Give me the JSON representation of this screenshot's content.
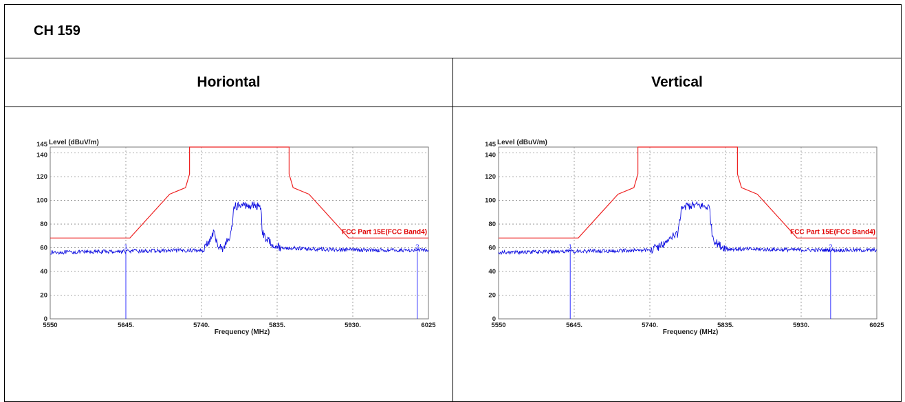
{
  "doc": {
    "title": "CH 159",
    "col_left": "Horiontal",
    "col_right": "Vertical"
  },
  "colors": {
    "trace": "#1010e0",
    "limit": "#ee2222",
    "marker": "#3030ff",
    "grid": "#888888"
  },
  "chart_data": [
    {
      "type": "line",
      "ylabel": "Level (dBuV/m)",
      "xlabel": "Frequency (MHz)",
      "xlim": [
        5550,
        6025
      ],
      "ylim": [
        0,
        145
      ],
      "xticks": [
        5550,
        5645,
        5740,
        5835,
        5930,
        6025
      ],
      "xtick_labels": [
        "5550",
        "5645.",
        "5740.",
        "5835.",
        "5930.",
        "6025"
      ],
      "yticks": [
        0,
        20,
        40,
        60,
        80,
        100,
        120,
        140,
        145
      ],
      "grid": true,
      "limit_line": {
        "name": "FCC Part 15E(FCC Band4)",
        "x": [
          5550,
          5650,
          5700,
          5720,
          5725,
          5725,
          5850,
          5850,
          5855,
          5875,
          5925,
          6025
        ],
        "y": [
          68.2,
          68.2,
          105.2,
          110.8,
          122.2,
          145,
          145,
          122.2,
          110.8,
          105.2,
          68.2,
          68.2
        ]
      },
      "series": [
        {
          "values_x": [
            5550,
            5600,
            5640,
            5700,
            5740,
            5750,
            5755,
            5760,
            5766,
            5775,
            5779,
            5780,
            5800,
            5815,
            5816,
            5820,
            5830,
            5840,
            5900,
            5960,
            6025
          ],
          "values_y": [
            56,
            56.5,
            57,
            57.5,
            58,
            65,
            73,
            63,
            59,
            68,
            78,
            95,
            96,
            95,
            75,
            68,
            63,
            60,
            58.5,
            58,
            58
          ]
        }
      ],
      "markers": [
        {
          "label": "1",
          "x": 5645
        },
        {
          "label": "2",
          "x": 6011
        }
      ]
    },
    {
      "type": "line",
      "ylabel": "Level (dBuV/m)",
      "xlabel": "Frequency (MHz)",
      "xlim": [
        5550,
        6025
      ],
      "ylim": [
        0,
        145
      ],
      "xticks": [
        5550,
        5645,
        5740,
        5835,
        5930,
        6025
      ],
      "xtick_labels": [
        "5550",
        "5645.",
        "5740.",
        "5835.",
        "5930.",
        "6025"
      ],
      "yticks": [
        0,
        20,
        40,
        60,
        80,
        100,
        120,
        140,
        145
      ],
      "grid": true,
      "limit_line": {
        "name": "FCC Part 15E(FCC Band4)",
        "x": [
          5550,
          5650,
          5700,
          5720,
          5725,
          5725,
          5850,
          5850,
          5855,
          5875,
          5925,
          6025
        ],
        "y": [
          68.2,
          68.2,
          105.2,
          110.8,
          122.2,
          145,
          145,
          122.2,
          110.8,
          105.2,
          68.2,
          68.2
        ]
      },
      "series": [
        {
          "values_x": [
            5550,
            5600,
            5650,
            5700,
            5740,
            5755,
            5765,
            5775,
            5780,
            5800,
            5815,
            5818,
            5822,
            5830,
            5840,
            5900,
            5960,
            6025
          ],
          "values_y": [
            56,
            56.5,
            57,
            57.5,
            58,
            62,
            68,
            72,
            95,
            96,
            94,
            72,
            65,
            61,
            59,
            58.5,
            58,
            58
          ]
        }
      ],
      "markers": [
        {
          "label": "1",
          "x": 5640
        },
        {
          "label": "2",
          "x": 5967
        }
      ]
    }
  ]
}
